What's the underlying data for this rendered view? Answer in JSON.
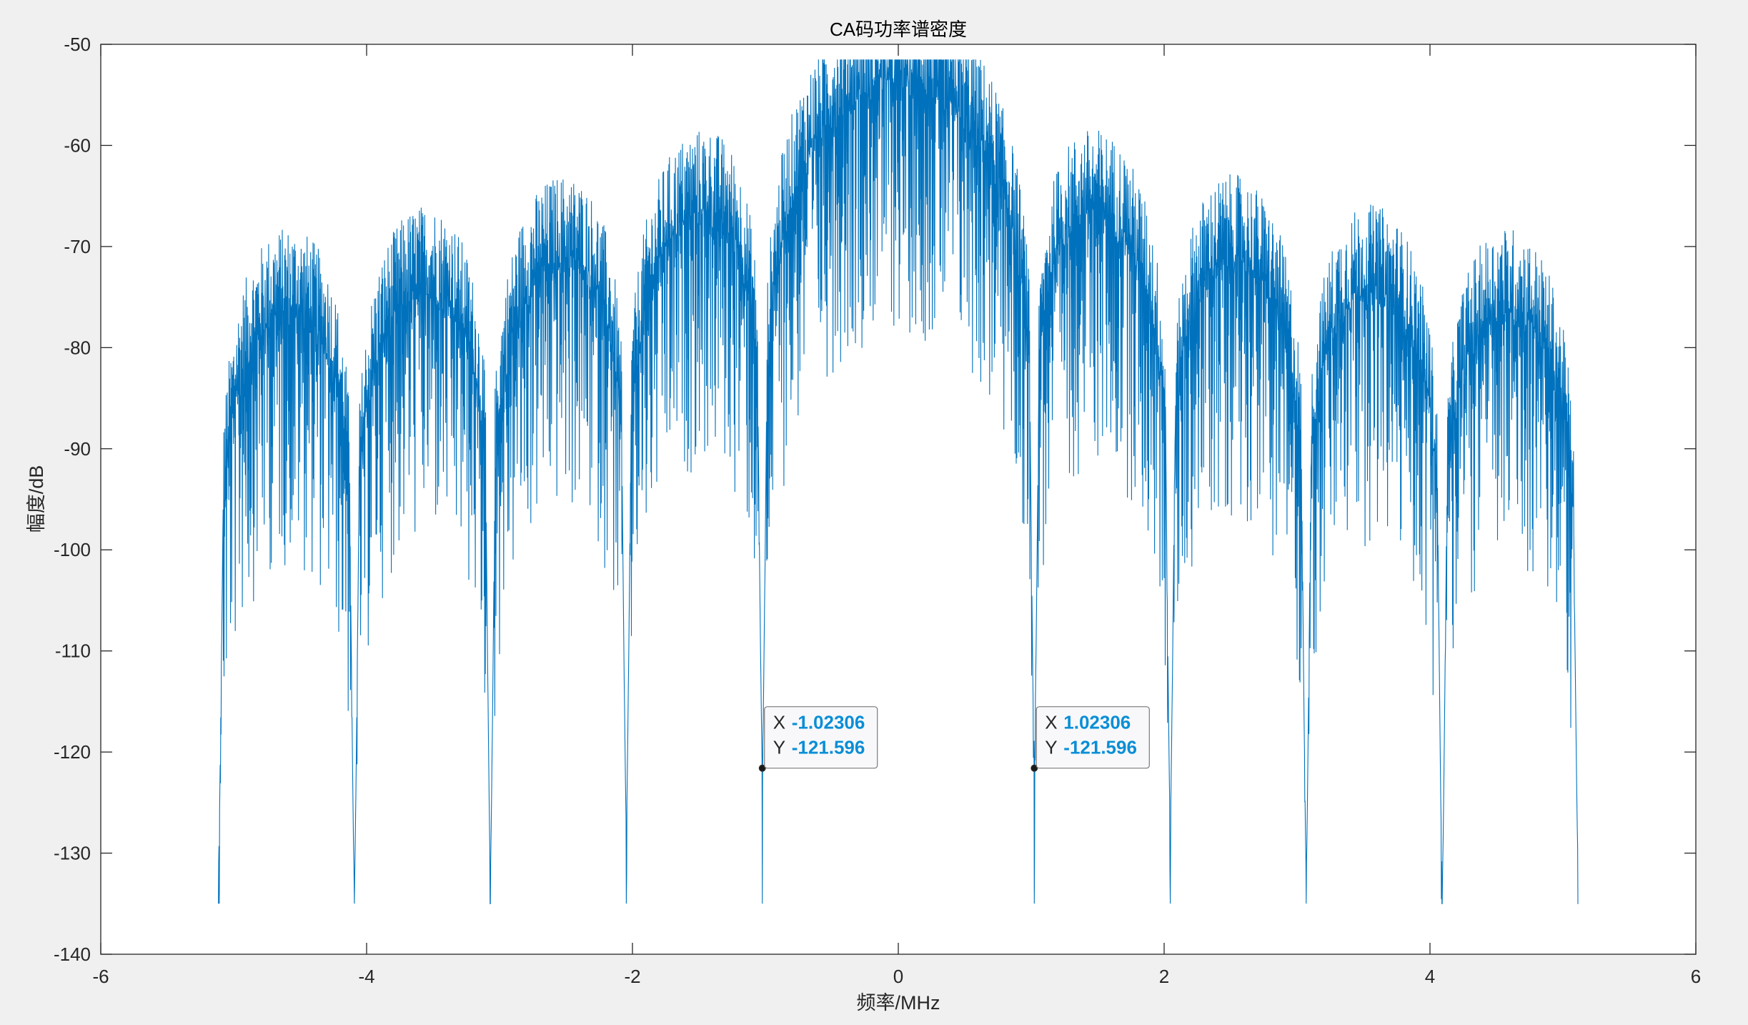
{
  "chart_data": {
    "type": "line",
    "title": "CA码功率谱密度",
    "xlabel": "频率/MHz",
    "ylabel": "幅度/dB",
    "xlim": [
      -6,
      6
    ],
    "ylim": [
      -140,
      -50
    ],
    "xticks": [
      -6,
      -4,
      -2,
      0,
      2,
      4,
      6
    ],
    "xtick_labels": [
      "-6",
      "-4",
      "-2",
      "0",
      "2",
      "4",
      "6"
    ],
    "yticks": [
      -50,
      -60,
      -70,
      -80,
      -90,
      -100,
      -110,
      -120,
      -130,
      -140
    ],
    "ytick_labels": [
      "-50",
      "-60",
      "-70",
      "-80",
      "-90",
      "-100",
      "-110",
      "-120",
      "-130",
      "-140"
    ],
    "grid": false,
    "legend": "none",
    "line_color": "#0072bd",
    "series": [
      {
        "x_range_mhz": [
          -5.115,
          5.115
        ],
        "main_lobe_peak_db": -53,
        "main_lobe_center_db": -63,
        "first_null_x": [
          -1.023,
          1.023
        ],
        "side_lobe_peaks_db": [
          {
            "x": -4.6,
            "peak": -72,
            "center": -82
          },
          {
            "x": -3.58,
            "peak": -71,
            "center": -80
          },
          {
            "x": -2.56,
            "peak": -69,
            "center": -78
          },
          {
            "x": -1.53,
            "peak": -65,
            "center": -74
          },
          {
            "x": 1.53,
            "peak": -65,
            "center": -74
          },
          {
            "x": 2.56,
            "peak": -69,
            "center": -78
          },
          {
            "x": 3.58,
            "peak": -71,
            "center": -80
          },
          {
            "x": 4.6,
            "peak": -72,
            "center": -82
          }
        ],
        "null_depths_db": [
          {
            "x": -5.115,
            "y": -131.5
          },
          {
            "x": -4.092,
            "y": -133.5
          },
          {
            "x": -3.069,
            "y": -132
          },
          {
            "x": -2.046,
            "y": -127.5
          },
          {
            "x": -1.023,
            "y": -121.596
          },
          {
            "x": 1.023,
            "y": -121.596
          },
          {
            "x": 2.046,
            "y": -127.5
          },
          {
            "x": 3.069,
            "y": -132
          },
          {
            "x": 4.092,
            "y": -133.5
          },
          {
            "x": 5.115,
            "y": -131.5
          }
        ]
      }
    ],
    "datatips": [
      {
        "x": -1.02306,
        "y": -121.596,
        "x_label": "X",
        "y_label": "Y",
        "x_text": "-1.02306",
        "y_text": "-121.596"
      },
      {
        "x": 1.02306,
        "y": -121.596,
        "x_label": "X",
        "y_label": "Y",
        "x_text": "1.02306",
        "y_text": "-121.596"
      }
    ],
    "colors": {
      "background": "#f0f0f0",
      "axes_background": "#ffffff",
      "axes": "#262626",
      "datatip_value": "#0a8ed6"
    }
  }
}
